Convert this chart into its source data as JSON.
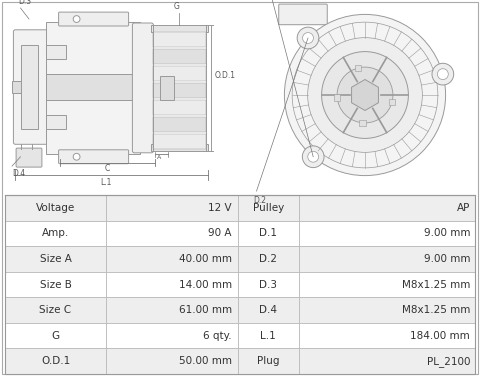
{
  "bg_color": "#ffffff",
  "table_border_color": "#bbbbbb",
  "table_row_bg_odd": "#eeeeee",
  "table_row_bg_even": "#ffffff",
  "left_col": [
    "Voltage",
    "Amp.",
    "Size A",
    "Size B",
    "Size C",
    "G",
    "O.D.1"
  ],
  "mid_col": [
    "12 V",
    "90 A",
    "40.00 mm",
    "14.00 mm",
    "61.00 mm",
    "6 qty.",
    "50.00 mm"
  ],
  "right_label": [
    "Pulley",
    "D.1",
    "D.2",
    "D.3",
    "D.4",
    "L.1",
    "Plug"
  ],
  "right_val": [
    "AP",
    "9.00 mm",
    "9.00 mm",
    "M8x1.25 mm",
    "M8x1.25 mm",
    "184.00 mm",
    "PL_2100"
  ],
  "font_size_table": 7.5,
  "ann_color": "#555555",
  "line_color": "#888888",
  "draw_color": "#999999",
  "draw_lw": 0.7,
  "diagram_bg": "#f5f5f5"
}
